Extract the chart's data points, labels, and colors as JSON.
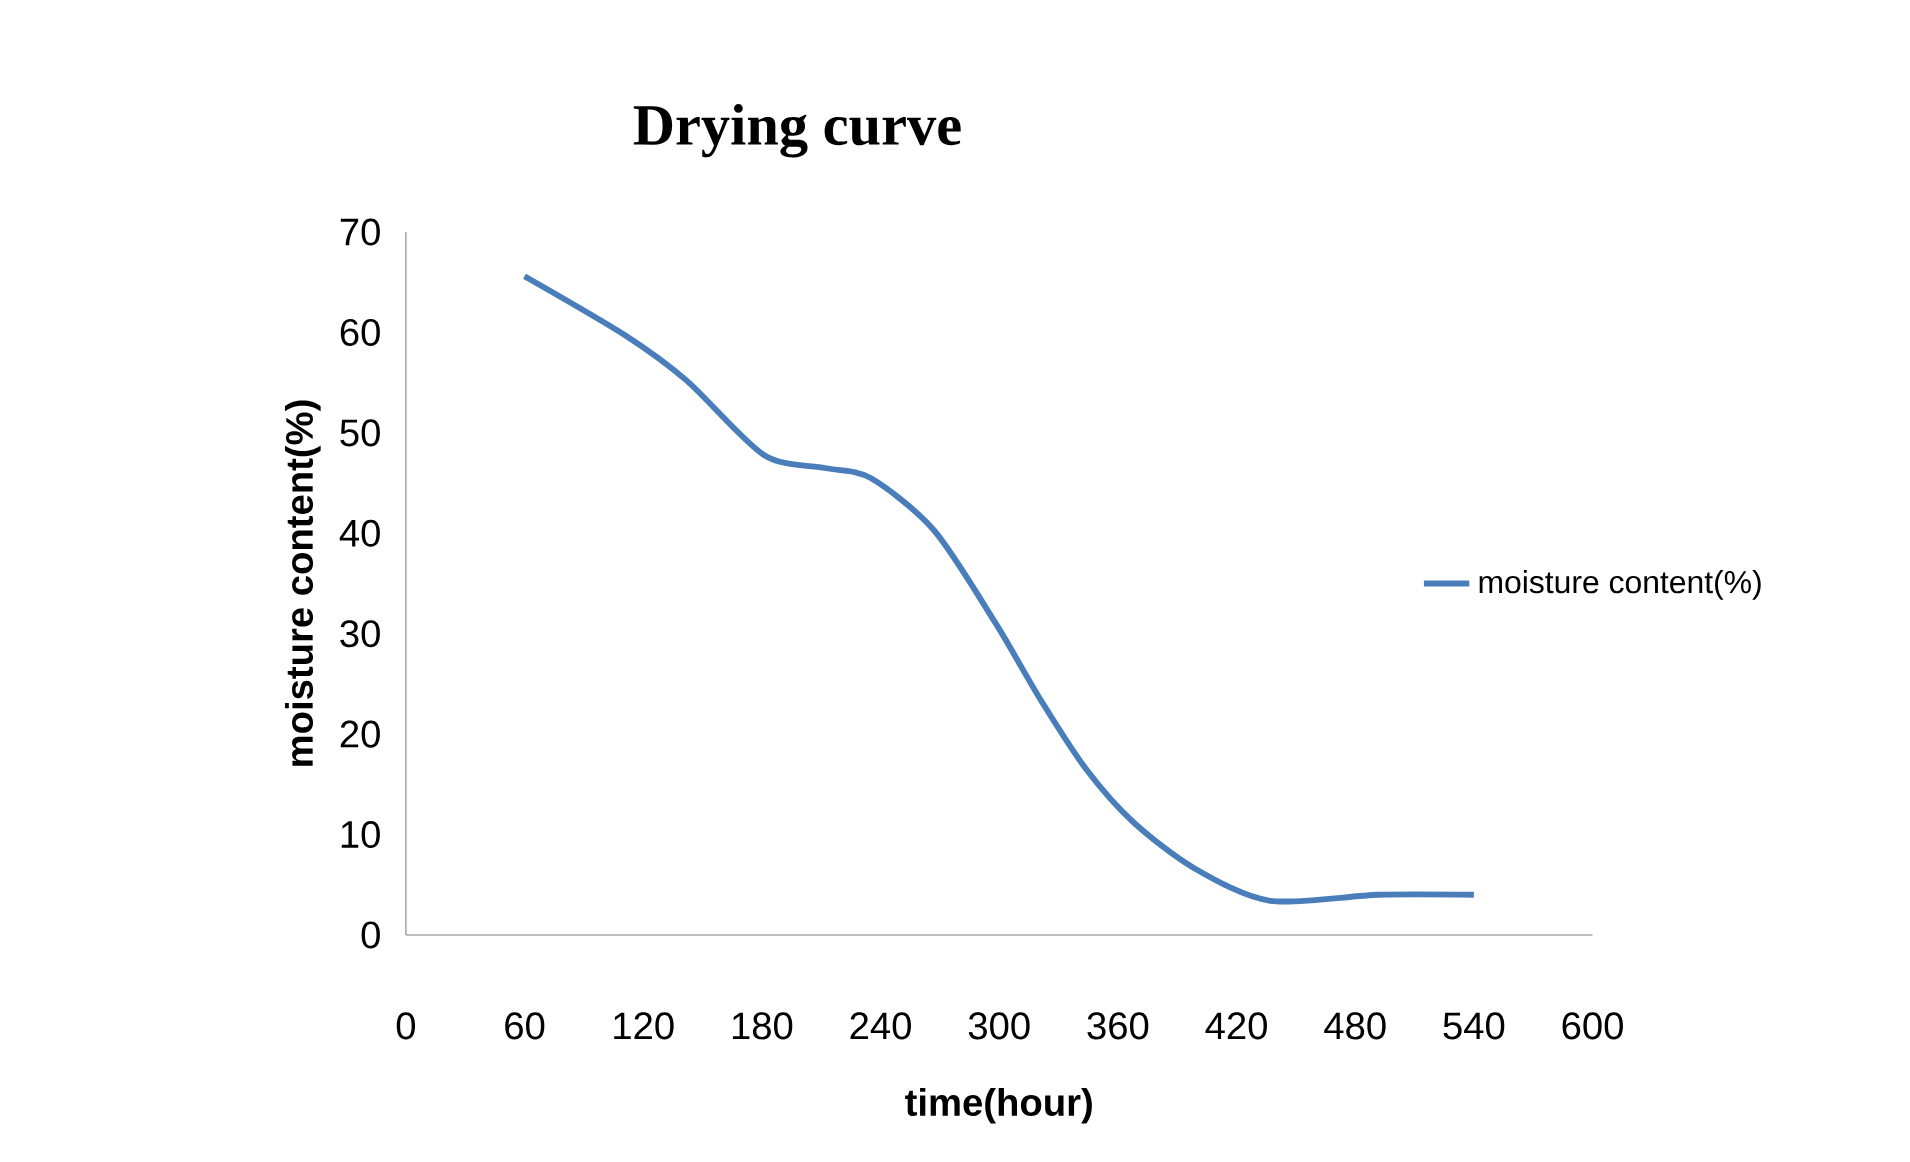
{
  "chart_data": {
    "type": "line",
    "title": "Drying curve",
    "xlabel": "time(hour)",
    "ylabel": "moisture content(%)",
    "xlim": [
      0,
      600
    ],
    "xticks": [
      0,
      60,
      120,
      180,
      240,
      300,
      360,
      420,
      480,
      540,
      600
    ],
    "ylim": [
      0,
      70
    ],
    "yticks": [
      0,
      10,
      20,
      30,
      40,
      50,
      60,
      70
    ],
    "grid": false,
    "legend": "right",
    "marker": "none",
    "line_style": "solid",
    "series": [
      {
        "name": "moisture content(%)",
        "color": "#4a7ebb",
        "x": [
          60,
          111,
          142,
          181,
          212,
          235,
          267,
          298,
          321,
          344,
          368,
          399,
          437,
          492,
          540
        ],
        "values": [
          65.6,
          59.7,
          55.2,
          47.8,
          46.5,
          45.5,
          40.3,
          31.1,
          23.4,
          16.5,
          11.2,
          6.6,
          3.4,
          4.0,
          4.0
        ]
      }
    ]
  }
}
